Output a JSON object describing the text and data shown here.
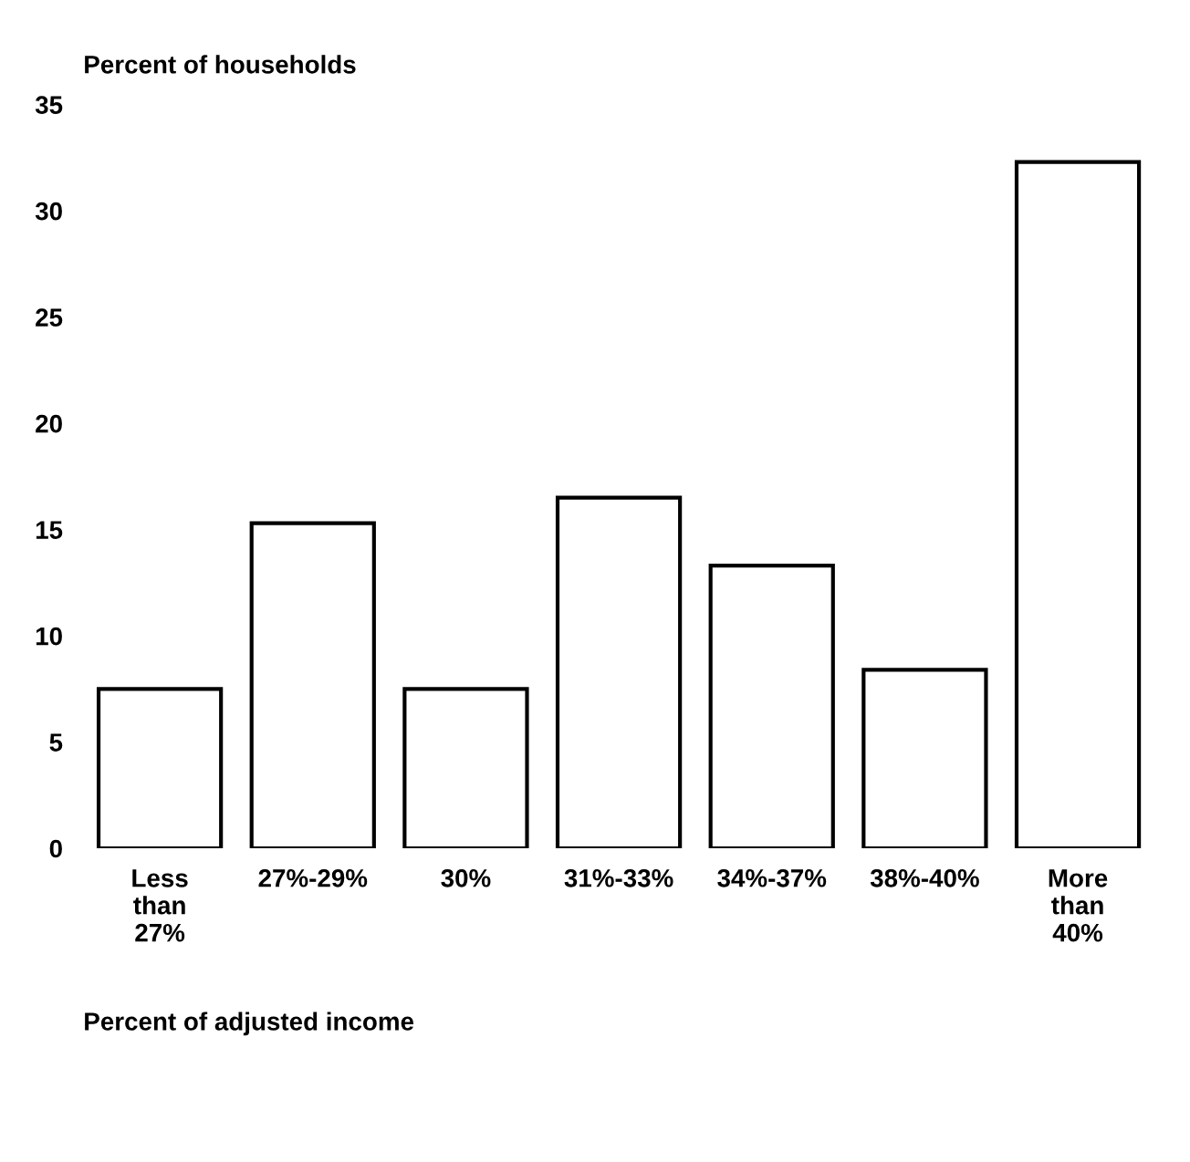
{
  "chart_data": {
    "type": "bar",
    "ylabel": "Percent of households",
    "xlabel": "Percent of adjusted income",
    "categories": [
      "Less\nthan\n27%",
      "27%-29%",
      "30%",
      "31%-33%",
      "34%-37%",
      "38%-40%",
      "More\nthan\n40%"
    ],
    "values": [
      7.5,
      15.3,
      7.5,
      16.5,
      13.3,
      8.4,
      32.3
    ],
    "color": "#ffffff",
    "ylim": [
      0,
      35
    ],
    "yticks": [
      0,
      5,
      10,
      15,
      20,
      25,
      30,
      35
    ],
    "grid": false
  }
}
